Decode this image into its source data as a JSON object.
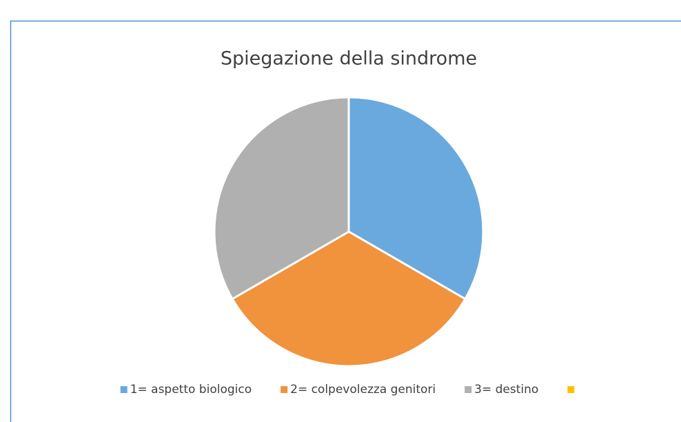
{
  "chart_data": {
    "type": "pie",
    "title": "Spiegazione della sindrome",
    "categories": [
      "1= aspetto biologico",
      "2= colpevolezza genitori",
      "3= destino",
      null
    ],
    "values": [
      33.3,
      33.3,
      33.3,
      0
    ],
    "colors": [
      "#6aa9dd",
      "#f1923d",
      "#b0b0b0",
      "#ffc000"
    ],
    "legend": "bottom"
  }
}
